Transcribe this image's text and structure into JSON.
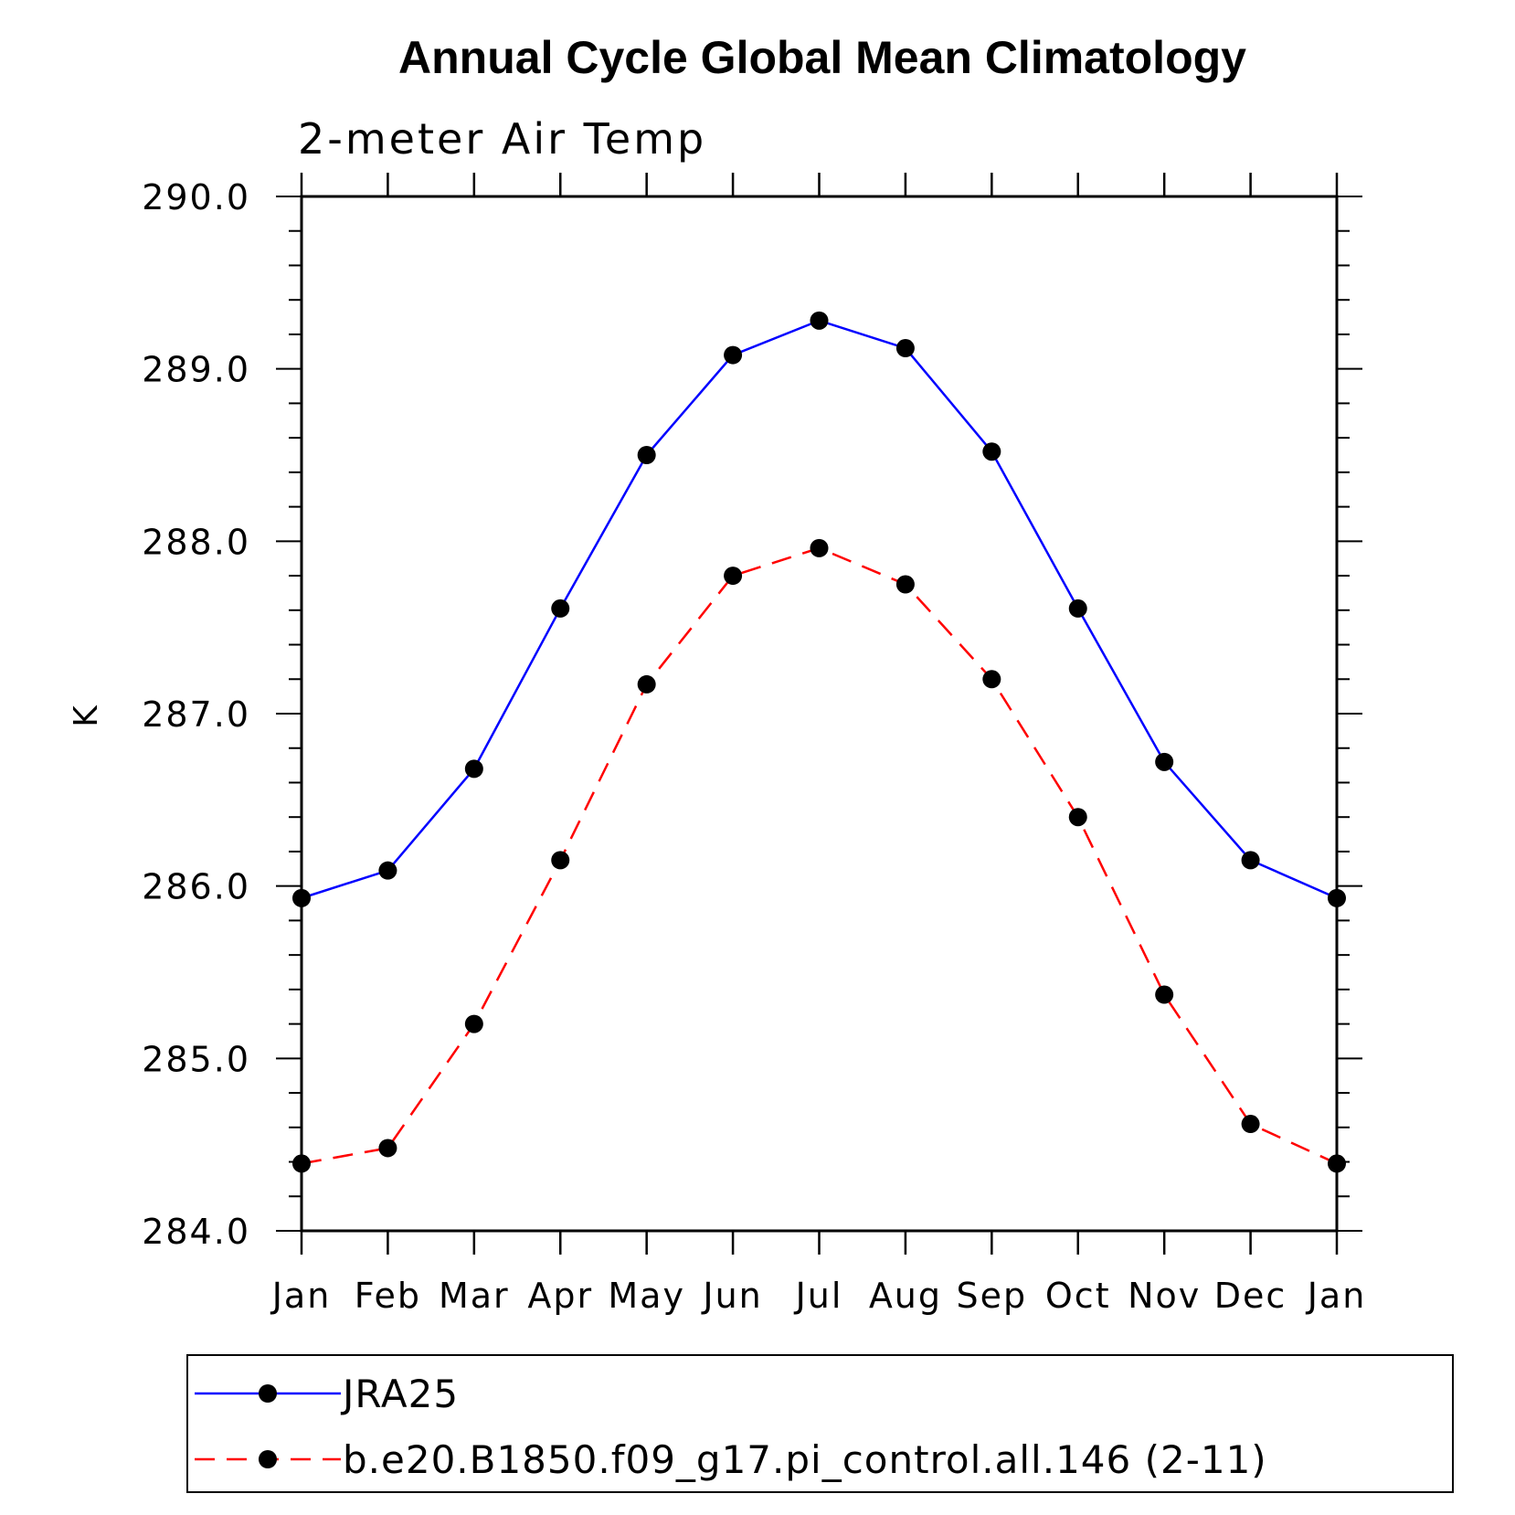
{
  "chart_data": {
    "type": "line",
    "title": "Annual Cycle Global Mean Climatology",
    "subtitle": "2-meter Air Temp",
    "xlabel": "",
    "ylabel": "K",
    "categories": [
      "Jan",
      "Feb",
      "Mar",
      "Apr",
      "May",
      "Jun",
      "Jul",
      "Aug",
      "Sep",
      "Oct",
      "Nov",
      "Dec",
      "Jan"
    ],
    "ylim": [
      284.0,
      290.0
    ],
    "yticks": [
      "284.0",
      "285.0",
      "286.0",
      "287.0",
      "288.0",
      "289.0",
      "290.0"
    ],
    "yminor_step": 0.2,
    "grid": false,
    "legend_position": "bottom",
    "series": [
      {
        "name": "JRA25",
        "color": "#0000ff",
        "line_style": "solid",
        "marker": "circle",
        "values": [
          285.93,
          286.09,
          286.68,
          287.61,
          288.5,
          289.08,
          289.28,
          289.12,
          288.52,
          287.61,
          286.72,
          286.15,
          285.93
        ]
      },
      {
        "name": "b.e20.B1850.f09_g17.pi_control.all.146 (2-11)",
        "color": "#ff0000",
        "line_style": "dashed",
        "marker": "circle",
        "values": [
          284.39,
          284.48,
          285.2,
          286.15,
          287.17,
          287.8,
          287.96,
          287.75,
          287.2,
          286.4,
          285.37,
          284.62,
          284.39
        ]
      }
    ]
  }
}
